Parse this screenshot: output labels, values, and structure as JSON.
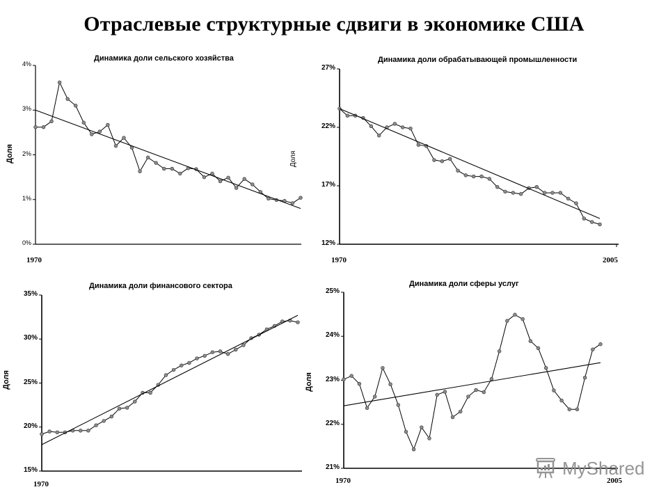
{
  "page": {
    "title": "Отраслевые структурные сдвиги в экономике США",
    "watermark": "MyShared"
  },
  "chart_data": [
    {
      "id": "agriculture",
      "type": "line",
      "title": "Динамика доли сельского хозяйства",
      "xlabel": "",
      "ylabel": "Доля",
      "x_start_label": "1970",
      "x_end_label": "",
      "yticks": [
        "0%",
        "1%",
        "2%",
        "3%",
        "4%"
      ],
      "ylim": [
        0,
        4
      ],
      "series": [
        {
          "name": "Доля",
          "values": [
            2.62,
            2.62,
            2.75,
            3.62,
            3.25,
            3.1,
            2.72,
            2.46,
            2.52,
            2.67,
            2.2,
            2.38,
            2.16,
            1.63,
            1.94,
            1.82,
            1.69,
            1.69,
            1.58,
            1.7,
            1.68,
            1.5,
            1.58,
            1.41,
            1.49,
            1.26,
            1.46,
            1.34,
            1.17,
            1.02,
            0.99,
            0.97,
            0.92,
            1.04
          ]
        },
        {
          "name": "Тренд",
          "values": [
            3.0,
            0.8
          ]
        }
      ]
    },
    {
      "id": "manufacturing",
      "type": "line",
      "title": "Динамика доли обрабатывающей промышленности",
      "xlabel": "",
      "ylabel": "Доля",
      "x_start_label": "1970",
      "x_end_label": "2005",
      "yticks": [
        "12%",
        "17%",
        "22%",
        "27%"
      ],
      "ylim": [
        12,
        27
      ],
      "series": [
        {
          "name": "Доля",
          "values": [
            23.6,
            23.0,
            23.0,
            22.8,
            22.1,
            21.3,
            22.0,
            22.3,
            22.0,
            21.9,
            20.5,
            20.4,
            19.2,
            19.1,
            19.3,
            18.3,
            17.9,
            17.8,
            17.8,
            17.6,
            16.9,
            16.5,
            16.4,
            16.3,
            16.8,
            16.9,
            16.4,
            16.4,
            16.4,
            15.9,
            15.5,
            14.2,
            13.9,
            13.7
          ]
        },
        {
          "name": "Тренд",
          "values": [
            23.6,
            14.2
          ]
        }
      ]
    },
    {
      "id": "finance",
      "type": "line",
      "title": "Динамика доли финансового сектора",
      "xlabel": "",
      "ylabel": "Доля",
      "x_start_label": "1970",
      "x_end_label": "",
      "yticks": [
        "15%",
        "20%",
        "25%",
        "30%",
        "35%"
      ],
      "ylim": [
        15,
        35
      ],
      "series": [
        {
          "name": "Доля",
          "values": [
            19.2,
            19.5,
            19.4,
            19.4,
            19.6,
            19.6,
            19.6,
            20.2,
            20.7,
            21.2,
            22.1,
            22.2,
            22.9,
            23.9,
            23.9,
            24.8,
            25.9,
            26.5,
            27.0,
            27.3,
            27.8,
            28.1,
            28.5,
            28.6,
            28.3,
            28.8,
            29.3,
            30.1,
            30.5,
            31.1,
            31.5,
            32.0,
            32.1,
            31.9
          ]
        },
        {
          "name": "Тренд",
          "values": [
            18.0,
            32.7
          ]
        }
      ]
    },
    {
      "id": "services",
      "type": "line",
      "title": "Динамика доли сферы услуг",
      "xlabel": "",
      "ylabel": "Доля",
      "x_start_label": "1970",
      "x_end_label": "2005",
      "yticks": [
        "21%",
        "22%",
        "23%",
        "24%",
        "25%"
      ],
      "ylim": [
        21,
        25
      ],
      "series": [
        {
          "name": "Доля",
          "values": [
            23.02,
            23.1,
            22.92,
            22.37,
            22.63,
            23.28,
            22.91,
            22.44,
            21.83,
            21.43,
            21.93,
            21.68,
            22.67,
            22.74,
            22.16,
            22.29,
            22.63,
            22.78,
            22.73,
            23.03,
            23.66,
            24.35,
            24.49,
            24.39,
            23.89,
            23.73,
            23.28,
            22.77,
            22.54,
            22.34,
            22.34,
            23.06,
            23.7,
            23.82
          ]
        },
        {
          "name": "Тренд",
          "values": [
            22.42,
            23.4
          ]
        }
      ]
    }
  ]
}
